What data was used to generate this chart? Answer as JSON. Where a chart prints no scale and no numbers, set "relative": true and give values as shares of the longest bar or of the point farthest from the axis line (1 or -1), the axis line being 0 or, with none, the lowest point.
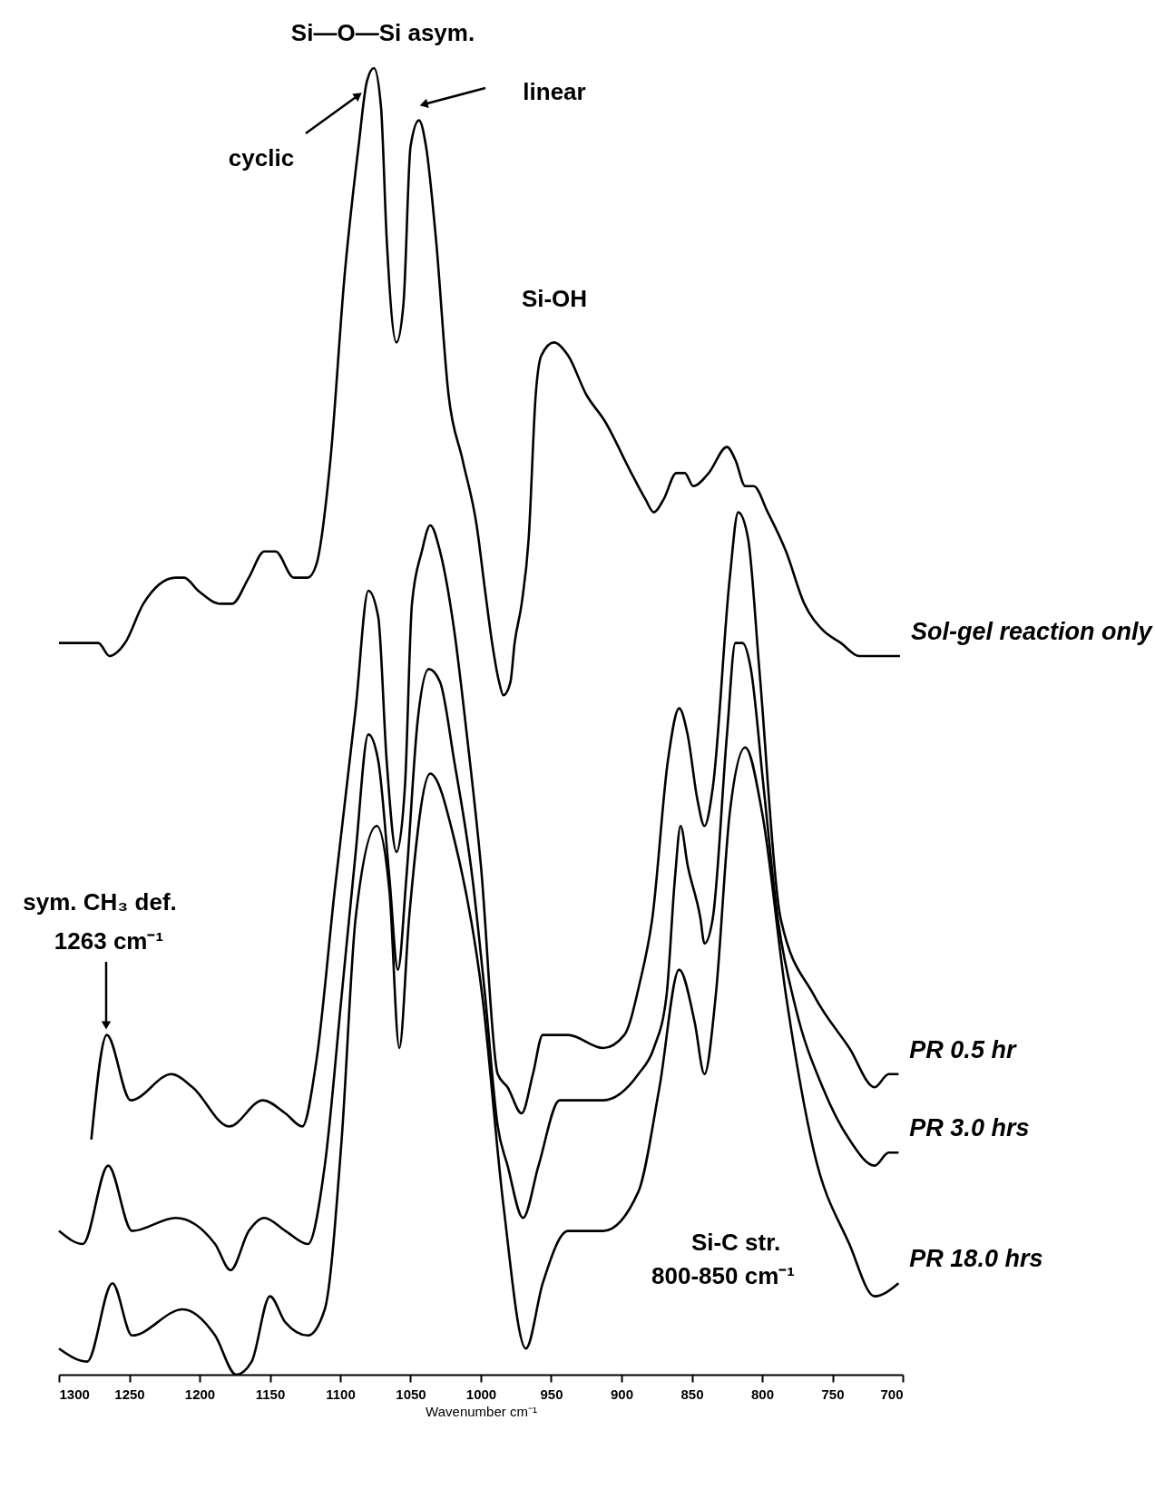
{
  "chart_data": {
    "type": "line",
    "relative": true,
    "xlabel": "Wavenumber cm⁻¹",
    "xlim": [
      1300,
      700
    ],
    "xticks": [
      1300,
      1250,
      1200,
      1150,
      1100,
      1050,
      1000,
      950,
      900,
      850,
      800,
      750,
      700
    ],
    "series": [
      {
        "name": "Sol-gel reaction only",
        "color": "#000000",
        "x": [
          1300,
          1282,
          1272,
          1264,
          1253,
          1240,
          1217,
          1211,
          1201,
          1185,
          1177,
          1165,
          1154,
          1146,
          1133,
          1123,
          1117,
          1107,
          1097,
          1087,
          1081,
          1076,
          1071,
          1067,
          1060,
          1055,
          1050,
          1044,
          1039,
          1032,
          1023,
          1013,
          1003,
          997,
          992,
          987,
          984,
          979,
          976,
          971,
          966,
          961,
          957,
          948,
          938,
          925,
          912,
          893,
          883,
          877,
          870,
          861,
          855,
          849,
          838,
          825,
          819,
          812,
          806,
          796,
          783,
          770,
          757,
          744,
          731,
          721,
          712,
          702
        ],
        "values": [
          0.56,
          0.56,
          0.56,
          0.55,
          0.56,
          0.59,
          0.61,
          0.61,
          0.6,
          0.59,
          0.59,
          0.61,
          0.63,
          0.63,
          0.61,
          0.61,
          0.62,
          0.7,
          0.84,
          0.94,
          0.99,
          1.0,
          0.97,
          0.87,
          0.79,
          0.82,
          0.94,
          0.96,
          0.94,
          0.87,
          0.75,
          0.7,
          0.65,
          0.6,
          0.56,
          0.53,
          0.52,
          0.53,
          0.56,
          0.59,
          0.64,
          0.75,
          0.78,
          0.79,
          0.78,
          0.75,
          0.73,
          0.69,
          0.67,
          0.66,
          0.67,
          0.69,
          0.69,
          0.68,
          0.69,
          0.71,
          0.7,
          0.68,
          0.68,
          0.66,
          0.63,
          0.59,
          0.57,
          0.56,
          0.55,
          0.55,
          0.55,
          0.55
        ]
      },
      {
        "name": "PR 0.5 hr",
        "color": "#000000",
        "x": [
          1277,
          1266,
          1249,
          1220,
          1205,
          1179,
          1155,
          1139,
          1127,
          1117,
          1104,
          1089,
          1080,
          1073,
          1067,
          1060,
          1054,
          1049,
          1042,
          1036,
          1029,
          1019,
          1010,
          1000,
          988,
          981,
          971,
          963,
          956,
          938,
          913,
          898,
          887,
          878,
          867,
          859,
          853,
          846,
          841,
          835,
          823,
          817,
          810,
          802,
          787,
          763,
          738,
          720,
          710,
          703
        ],
        "values": [
          0.18,
          0.26,
          0.21,
          0.23,
          0.22,
          0.19,
          0.21,
          0.2,
          0.19,
          0.24,
          0.37,
          0.51,
          0.6,
          0.58,
          0.47,
          0.4,
          0.45,
          0.59,
          0.63,
          0.65,
          0.63,
          0.57,
          0.49,
          0.39,
          0.23,
          0.22,
          0.2,
          0.23,
          0.26,
          0.26,
          0.25,
          0.26,
          0.3,
          0.35,
          0.47,
          0.51,
          0.49,
          0.44,
          0.42,
          0.45,
          0.61,
          0.66,
          0.64,
          0.54,
          0.35,
          0.29,
          0.25,
          0.22,
          0.23,
          0.23
        ]
      },
      {
        "name": "PR 3.0 hrs",
        "color": "#000000",
        "x": [
          1300,
          1283,
          1265,
          1248,
          1217,
          1189,
          1178,
          1165,
          1154,
          1139,
          1123,
          1111,
          1099,
          1089,
          1080,
          1073,
          1065,
          1059,
          1053,
          1045,
          1037,
          1029,
          1019,
          1006,
          997,
          988,
          981,
          970,
          959,
          944,
          913,
          888,
          877,
          868,
          862,
          858,
          853,
          844,
          841,
          835,
          825,
          819,
          814,
          808,
          799,
          789,
          776,
          757,
          738,
          720,
          710,
          703
        ],
        "values": [
          0.11,
          0.1,
          0.16,
          0.11,
          0.12,
          0.1,
          0.08,
          0.11,
          0.12,
          0.11,
          0.1,
          0.16,
          0.29,
          0.4,
          0.49,
          0.47,
          0.38,
          0.31,
          0.38,
          0.5,
          0.54,
          0.53,
          0.47,
          0.38,
          0.29,
          0.19,
          0.16,
          0.12,
          0.16,
          0.21,
          0.21,
          0.23,
          0.25,
          0.29,
          0.38,
          0.42,
          0.39,
          0.35,
          0.33,
          0.35,
          0.49,
          0.56,
          0.56,
          0.54,
          0.45,
          0.35,
          0.28,
          0.22,
          0.18,
          0.16,
          0.17,
          0.17
        ]
      },
      {
        "name": "PR 18.0 hrs",
        "color": "#000000",
        "x": [
          1300,
          1280,
          1262,
          1248,
          1212,
          1189,
          1174,
          1163,
          1150,
          1139,
          1123,
          1111,
          1099,
          1089,
          1074,
          1065,
          1058,
          1051,
          1036,
          1019,
          999,
          984,
          968,
          956,
          938,
          913,
          888,
          873,
          859,
          848,
          841,
          833,
          823,
          812,
          800,
          783,
          763,
          738,
          720,
          703
        ],
        "values": [
          0.02,
          0.01,
          0.07,
          0.03,
          0.05,
          0.03,
          0.0,
          0.01,
          0.06,
          0.04,
          0.03,
          0.05,
          0.18,
          0.35,
          0.42,
          0.37,
          0.25,
          0.35,
          0.46,
          0.41,
          0.29,
          0.13,
          0.02,
          0.07,
          0.11,
          0.11,
          0.14,
          0.22,
          0.31,
          0.27,
          0.23,
          0.29,
          0.43,
          0.48,
          0.43,
          0.29,
          0.17,
          0.1,
          0.06,
          0.07
        ]
      }
    ],
    "annotations": [
      "Si—O—Si asym.",
      "cyclic",
      "linear",
      "Si-OH",
      "sym. CH₃ def.",
      "1263 cm⁻¹",
      "Si-C str.",
      "800-850 cm⁻¹"
    ]
  }
}
